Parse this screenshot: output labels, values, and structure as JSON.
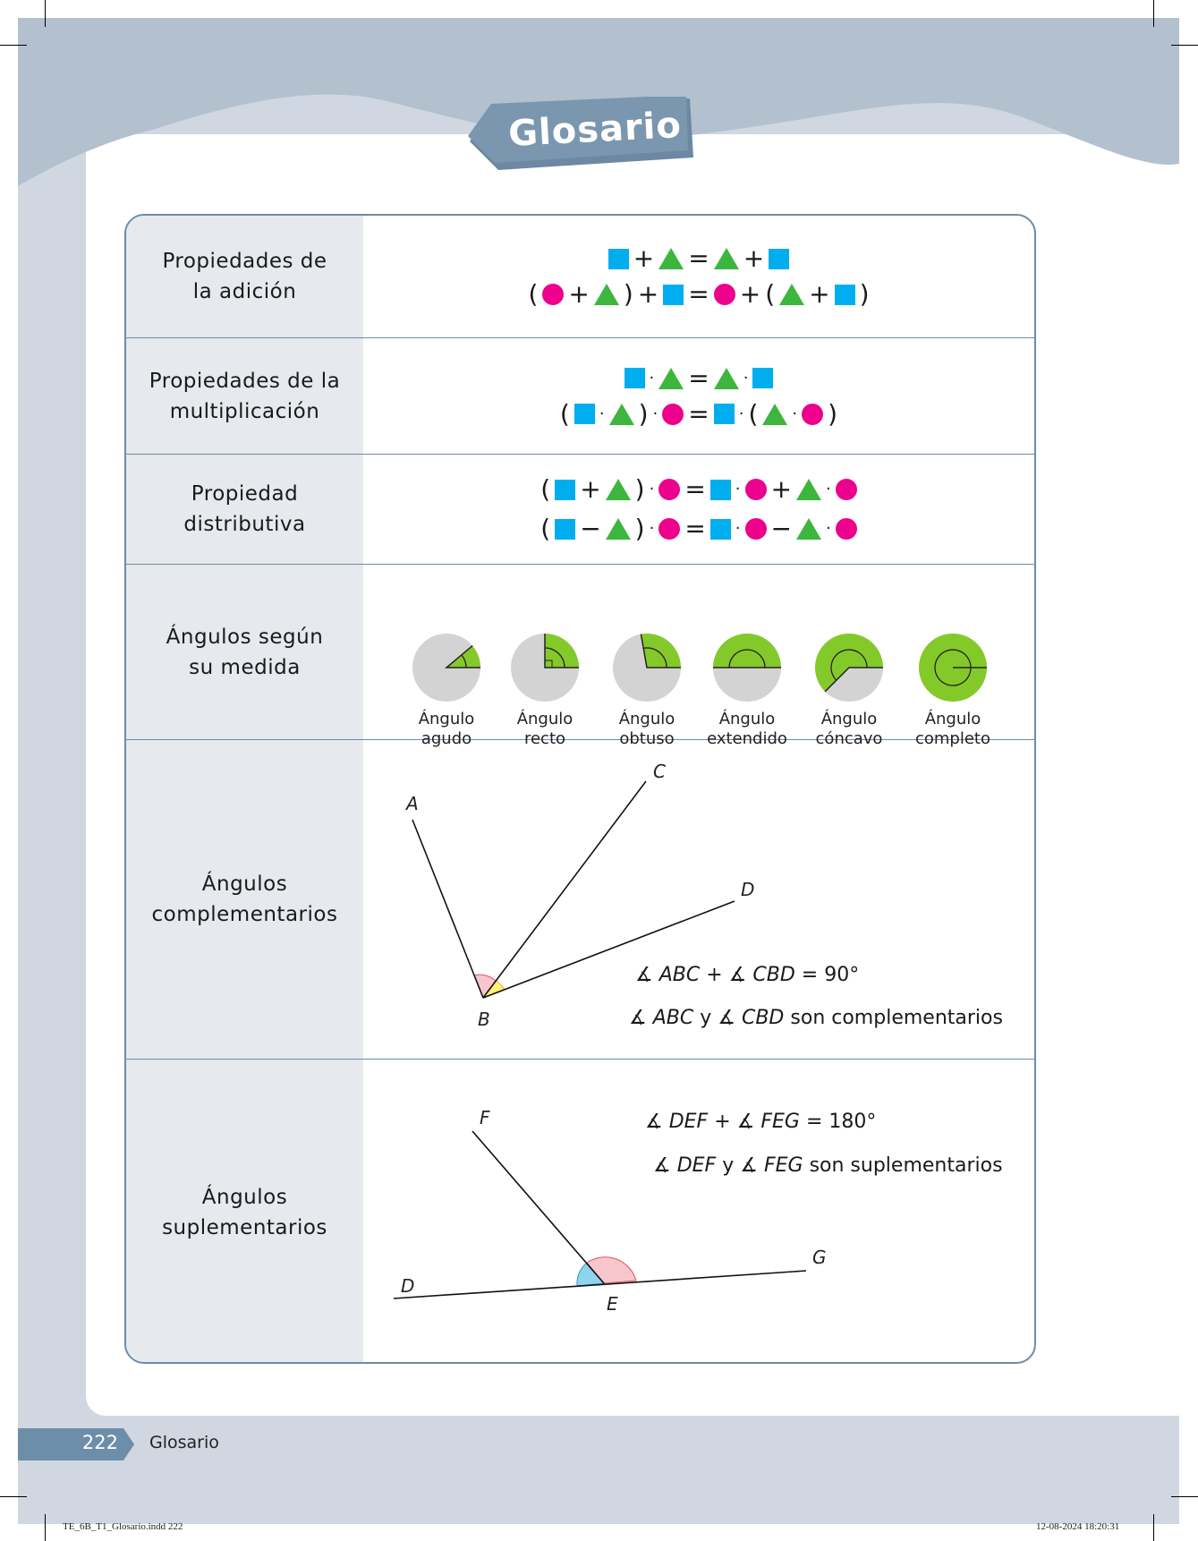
{
  "header": {
    "title": "Glosario"
  },
  "rows": [
    {
      "term": "Propiedades de\nla adición",
      "equations": [
        [
          "square",
          "+",
          "triangle",
          "=",
          "triangle",
          "+",
          "square"
        ],
        [
          "(",
          "circle",
          "+",
          "triangle",
          ")",
          "+",
          "square",
          "=",
          "circle",
          "+",
          "(",
          "triangle",
          "+",
          "square",
          ")"
        ]
      ]
    },
    {
      "term": "Propiedades de la\nmultiplicación",
      "equations": [
        [
          "square",
          "·",
          "triangle",
          "=",
          "triangle",
          "·",
          "square"
        ],
        [
          "(",
          "square",
          "·",
          "triangle",
          ")",
          "·",
          "circle",
          "=",
          "square",
          "·",
          "(",
          "triangle",
          "·",
          "circle",
          ")"
        ]
      ]
    },
    {
      "term": "Propiedad\ndistributiva",
      "equations": [
        [
          "(",
          "square",
          "+",
          "triangle",
          ")",
          "·",
          "circle",
          "=",
          "square",
          "·",
          "circle",
          "+",
          "triangle",
          "·",
          "circle"
        ],
        [
          "(",
          "square",
          "−",
          "triangle",
          ")",
          "·",
          "circle",
          "=",
          "square",
          "·",
          "circle",
          "−",
          "triangle",
          "·",
          "circle"
        ]
      ]
    },
    {
      "term": "Ángulos según\nsu medida",
      "angles": [
        {
          "line1": "Ángulo",
          "line2": "agudo",
          "degrees": 40
        },
        {
          "line1": "Ángulo",
          "line2": "recto",
          "degrees": 90
        },
        {
          "line1": "Ángulo",
          "line2": "obtuso",
          "degrees": 100
        },
        {
          "line1": "Ángulo",
          "line2": "extendido",
          "degrees": 180
        },
        {
          "line1": "Ángulo",
          "line2": "cóncavo",
          "degrees": 225
        },
        {
          "line1": "Ángulo",
          "line2": "completo",
          "degrees": 360
        }
      ]
    },
    {
      "term": "Ángulos\ncomplementarios",
      "points": {
        "A": "A",
        "B": "B",
        "C": "C",
        "D": "D"
      },
      "statement1": {
        "a": "∡ ABC",
        "op": "+",
        "b": "∡ CBD",
        "rest": "= 90°"
      },
      "statement2": {
        "a": "∡ ABC",
        "y": "y",
        "b": "∡ CBD",
        "rest": "son complementarios"
      }
    },
    {
      "term": "Ángulos\nsuplementarios",
      "points": {
        "D": "D",
        "E": "E",
        "F": "F",
        "G": "G"
      },
      "statement1": {
        "a": "∡ DEF",
        "op": "+",
        "b": "∡ FEG",
        "rest": "= 180°"
      },
      "statement2": {
        "a": "∡ DEF",
        "y": "y",
        "b": "∡ FEG",
        "rest": "son suplementarios"
      }
    }
  ],
  "footer": {
    "page_number": "222",
    "section": "Glosario"
  },
  "slug": {
    "file": "TE_6B_T1_Glosario.indd   222",
    "timestamp": "12-08-2024   18:20:31"
  },
  "colors": {
    "square": "#00aeef",
    "triangle": "#3db63e",
    "circle": "#ec008c",
    "angle_fill": "#84c92a",
    "header": "#7b97b0"
  }
}
